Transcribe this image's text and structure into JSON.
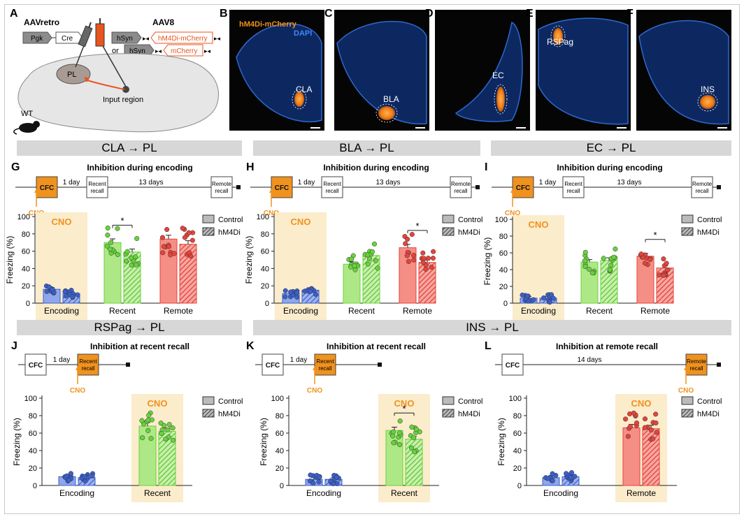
{
  "panel_letters": [
    "A",
    "B",
    "C",
    "D",
    "E",
    "F",
    "G",
    "H",
    "I",
    "J",
    "K",
    "L"
  ],
  "schematic": {
    "aavretro": "AAVretro",
    "pgk": "Pgk",
    "cre": "Cre",
    "aav8": "AAV8",
    "hsyn": "hSyn",
    "construct_1": "hM4Di-mCherry",
    "or_label": "or",
    "construct_2": "mCherry",
    "pl_label": "PL",
    "input_region": "Input region",
    "wt_label": "WT"
  },
  "histology": {
    "stain_1": "hM4Di-mCherry",
    "stain_2": "DAPI",
    "regions": [
      "CLA",
      "BLA",
      "EC",
      "RSPag",
      "INS"
    ]
  },
  "headers": [
    "CLA → PL",
    "BLA → PL",
    "EC → PL",
    "RSPag → PL",
    "INS → PL"
  ],
  "timeline": {
    "cfc": "CFC",
    "recent_recall": [
      "Recent",
      "recall"
    ],
    "remote_recall": [
      "Remote",
      "recall"
    ],
    "one_day": "1 day",
    "thirteen_days": "13 days",
    "fourteen_days": "14 days",
    "cno": "CNO"
  },
  "legend": {
    "control": "Control",
    "hm4di": "hM4Di"
  },
  "colors": {
    "encoding": "#3a5fcd",
    "recent": "#66d43a",
    "remote": "#e8423a",
    "cno_shade": "#fbeccc",
    "cno_text": "#f0921e",
    "header_bg": "#d7d7d7"
  },
  "chart_data": [
    {
      "panel": "G",
      "type": "bar",
      "title": "Inhibition during encoding",
      "ylabel": "Freezing (%)",
      "ylim": [
        0,
        100
      ],
      "yticks": [
        0,
        20,
        40,
        60,
        80,
        100
      ],
      "categories": [
        "Encoding",
        "Recent",
        "Remote"
      ],
      "cno_phase": "Encoding",
      "series": [
        {
          "name": "Control",
          "values": [
            16,
            70,
            74
          ]
        },
        {
          "name": "hM4Di",
          "values": [
            11,
            59,
            68
          ]
        }
      ],
      "significance": [
        {
          "group": "Recent",
          "label": "*"
        }
      ]
    },
    {
      "panel": "H",
      "type": "bar",
      "title": "Inhibition during encoding",
      "ylabel": "Freezing (%)",
      "ylim": [
        0,
        100
      ],
      "yticks": [
        0,
        20,
        40,
        60,
        80,
        100
      ],
      "categories": [
        "Encoding",
        "Recent",
        "Remote"
      ],
      "cno_phase": "Encoding",
      "series": [
        {
          "name": "Control",
          "values": [
            11,
            45,
            64
          ]
        },
        {
          "name": "hM4Di",
          "values": [
            15,
            55,
            47
          ]
        }
      ],
      "significance": [
        {
          "group": "Remote",
          "label": "*"
        }
      ]
    },
    {
      "panel": "I",
      "type": "bar",
      "title": "Inhibition during encoding",
      "ylabel": "Freezing (%)",
      "ylim": [
        0,
        100
      ],
      "yticks": [
        0,
        20,
        40,
        60,
        80,
        100
      ],
      "categories": [
        "Encoding",
        "Recent",
        "Remote"
      ],
      "cno_phase": "Encoding",
      "series": [
        {
          "name": "Control",
          "values": [
            6,
            49,
            56
          ]
        },
        {
          "name": "hM4Di",
          "values": [
            6,
            51,
            42
          ]
        }
      ],
      "significance": [
        {
          "group": "Remote",
          "label": "*"
        }
      ]
    },
    {
      "panel": "J",
      "type": "bar",
      "title": "Inhibition at recent recall",
      "ylabel": "Freezing (%)",
      "ylim": [
        0,
        100
      ],
      "yticks": [
        0,
        20,
        40,
        60,
        80,
        100
      ],
      "categories": [
        "Encoding",
        "Recent"
      ],
      "cno_phase": "Recent",
      "series": [
        {
          "name": "Control",
          "values": [
            10,
            68
          ]
        },
        {
          "name": "hM4Di",
          "values": [
            9,
            62
          ]
        }
      ],
      "significance": []
    },
    {
      "panel": "K",
      "type": "bar",
      "title": "Inhibition at recent recall",
      "ylabel": "Freezing (%)",
      "ylim": [
        0,
        100
      ],
      "yticks": [
        0,
        20,
        40,
        60,
        80,
        100
      ],
      "categories": [
        "Encoding",
        "Recent"
      ],
      "cno_phase": "Recent",
      "series": [
        {
          "name": "Control",
          "values": [
            7,
            63
          ]
        },
        {
          "name": "hM4Di",
          "values": [
            7,
            53
          ]
        }
      ],
      "significance": [
        {
          "group": "Recent",
          "label": "*"
        }
      ]
    },
    {
      "panel": "L",
      "type": "bar",
      "title": "Inhibition at remote recall",
      "ylabel": "Freezing (%)",
      "ylim": [
        0,
        100
      ],
      "yticks": [
        0,
        20,
        40,
        60,
        80,
        100
      ],
      "categories": [
        "Encoding",
        "Remote"
      ],
      "cno_phase": "Remote",
      "series": [
        {
          "name": "Control",
          "values": [
            9,
            66
          ]
        },
        {
          "name": "hM4Di",
          "values": [
            10,
            65
          ]
        }
      ],
      "significance": []
    }
  ]
}
